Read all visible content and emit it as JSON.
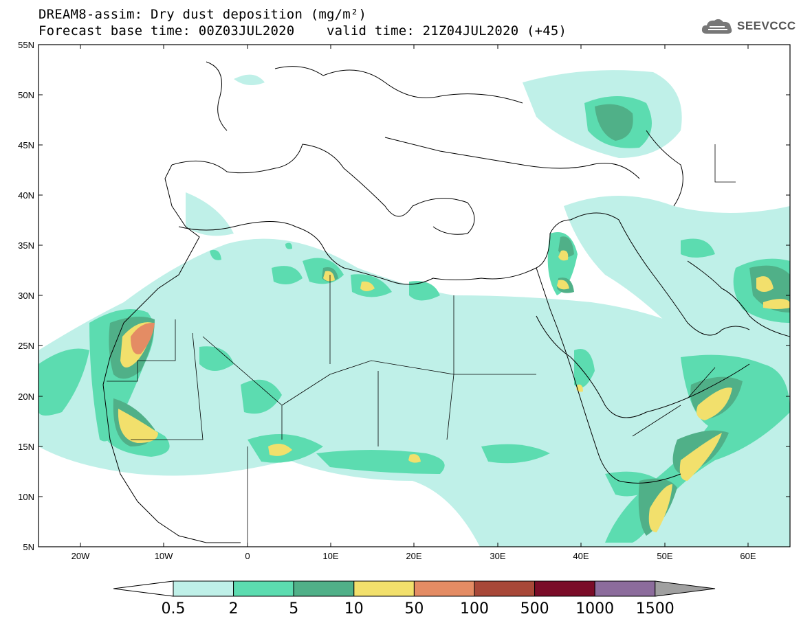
{
  "header": {
    "line1": "DREAM8-assim: Dry dust deposition (mg/m²)",
    "line2": "Forecast base time: 00Z03JUL2020    valid time: 21Z04JUL2020 (+45)"
  },
  "logo": {
    "text": "SEEVCCC",
    "icon": "cloud-icon"
  },
  "map": {
    "lon_range": [
      -25,
      65
    ],
    "lat_range": [
      5,
      55
    ],
    "lat_labels": [
      "55N",
      "50N",
      "45N",
      "40N",
      "35N",
      "30N",
      "25N",
      "20N",
      "15N",
      "10N",
      "5N"
    ],
    "lon_labels": [
      "20W",
      "10W",
      "0",
      "10E",
      "20E",
      "30E",
      "40E",
      "50E",
      "60E"
    ]
  },
  "legend": {
    "labels": [
      "0.5",
      "2",
      "5",
      "10",
      "50",
      "100",
      "500",
      "1000",
      "1500"
    ],
    "colors": [
      "#bff0e8",
      "#5cdcb0",
      "#50b088",
      "#f2e06c",
      "#e48c64",
      "#a84838",
      "#7a0c28",
      "#8c6c9c",
      "#a0a0a0"
    ],
    "units": "mg/m²"
  }
}
